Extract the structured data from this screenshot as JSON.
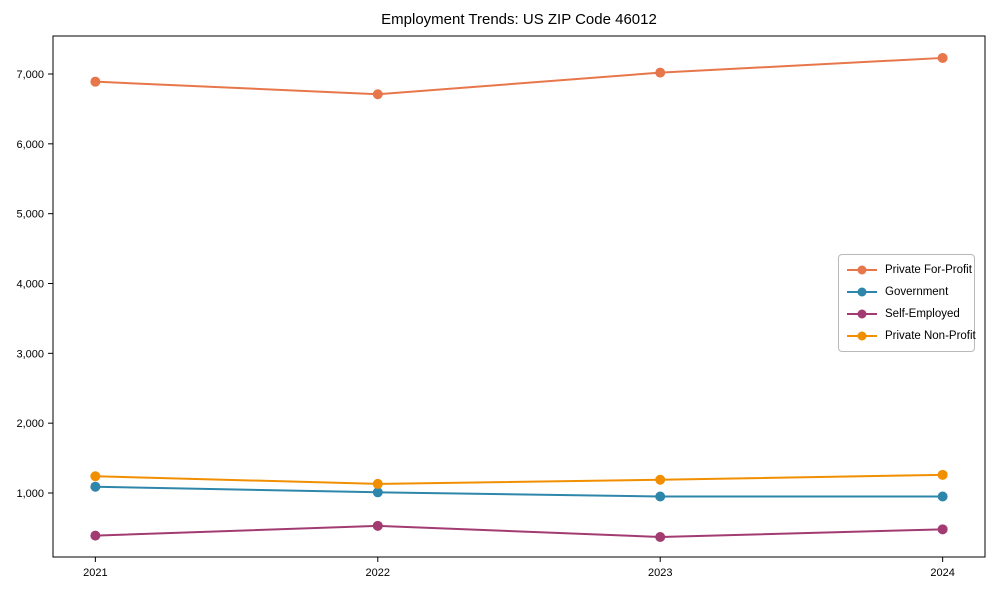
{
  "chart_data": {
    "type": "line",
    "title": "Employment Trends: US ZIP Code 46012",
    "xlabel": "",
    "ylabel": "",
    "x": [
      2021,
      2022,
      2023,
      2024
    ],
    "x_tick_labels": [
      "2021",
      "2022",
      "2023",
      "2024"
    ],
    "y_ticks": [
      1000,
      2000,
      3000,
      4000,
      5000,
      6000,
      7000
    ],
    "y_tick_labels": [
      "1,000",
      "2,000",
      "3,000",
      "4,000",
      "5,000",
      "6,000",
      "7,000"
    ],
    "ylim": [
      80,
      7560
    ],
    "grid": false,
    "marker": "circle",
    "legend_position": "right-center-inside",
    "series": [
      {
        "name": "Private For-Profit",
        "color": "#E8764B",
        "values": [
          6890,
          6710,
          7020,
          7230
        ]
      },
      {
        "name": "Government",
        "color": "#2E86AB",
        "values": [
          1090,
          1010,
          950,
          950
        ]
      },
      {
        "name": "Self-Employed",
        "color": "#A23B72",
        "values": [
          390,
          530,
          370,
          480
        ]
      },
      {
        "name": "Private Non-Profit",
        "color": "#F18F01",
        "values": [
          1240,
          1130,
          1190,
          1260
        ]
      }
    ]
  }
}
